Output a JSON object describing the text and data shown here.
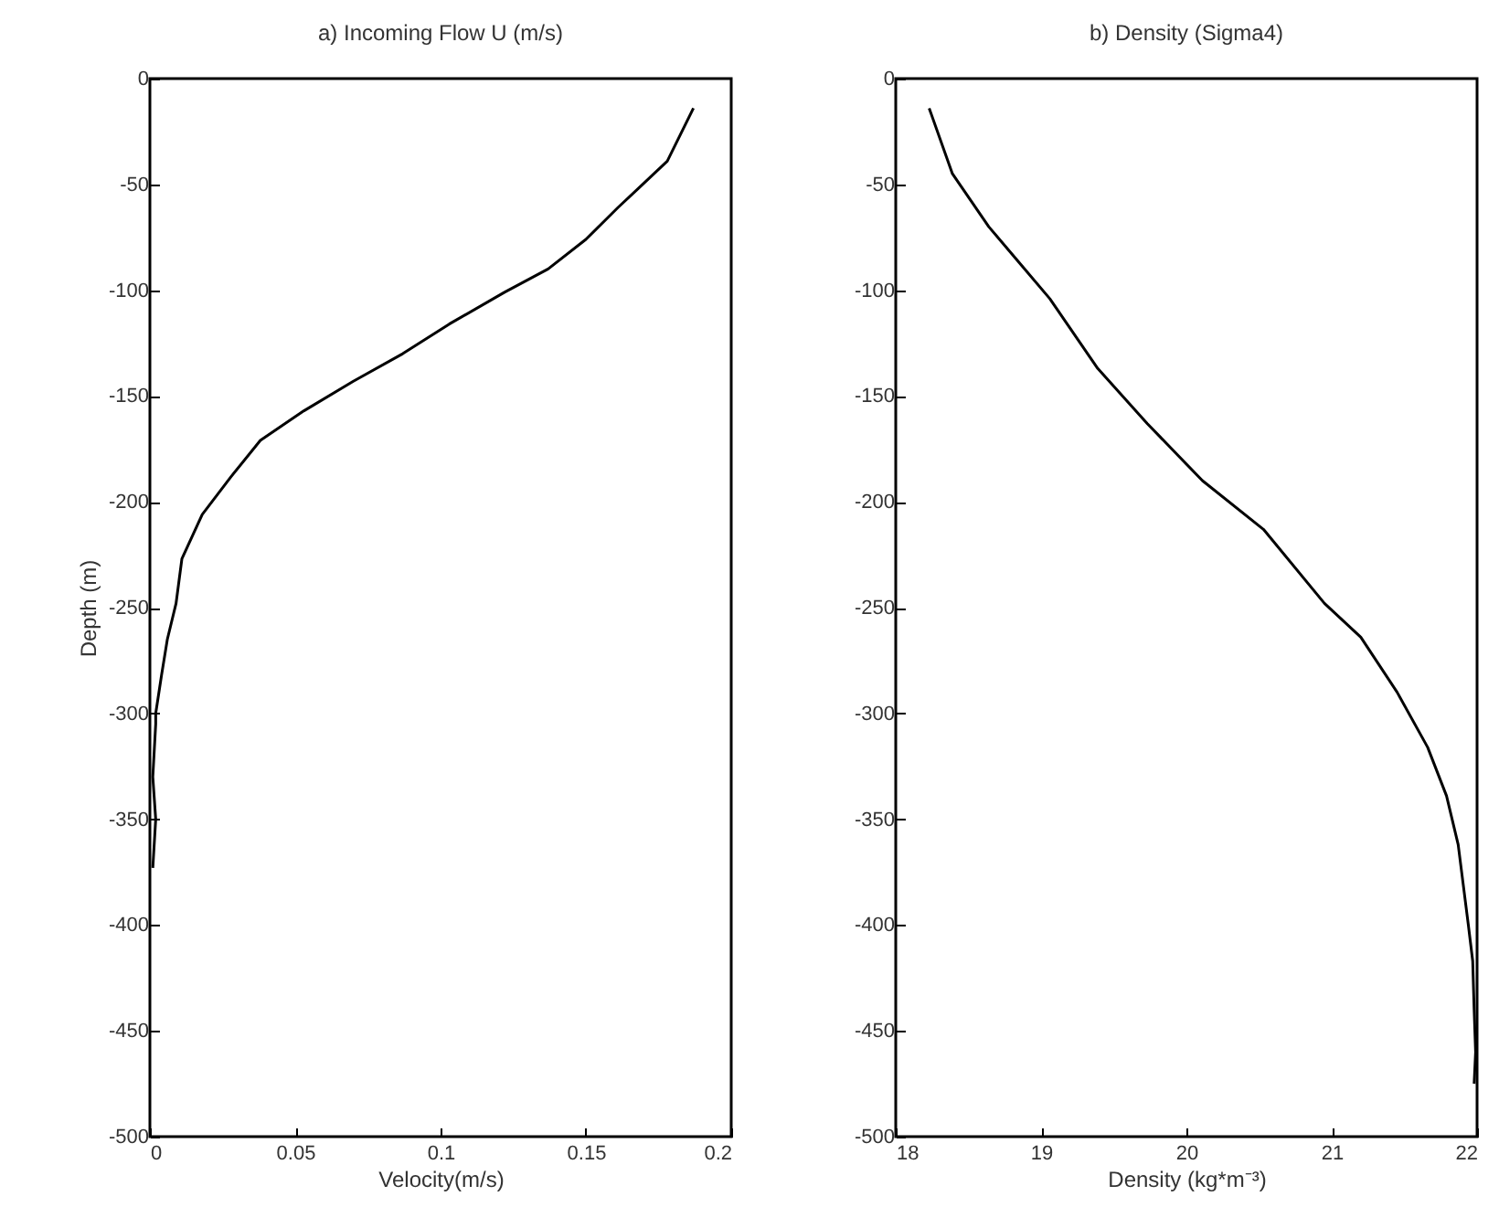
{
  "chart_data": [
    {
      "type": "line",
      "title": "a) Incoming Flow U (m/s)",
      "xlabel": "Velocity(m/s)",
      "ylabel": "Depth (m)",
      "series": [
        {
          "color": "#000000",
          "x": [
            0.187,
            0.178,
            0.168,
            0.161,
            0.15,
            0.137,
            0.122,
            0.103,
            0.087,
            0.07,
            0.053,
            0.038,
            0.028,
            0.018,
            0.011,
            0.009,
            0.006,
            0.004,
            0.002,
            0.002,
            0.001,
            0.002,
            0.001
          ],
          "values": [
            -14,
            -39,
            -52,
            -61,
            -76,
            -90,
            -101,
            -116,
            -130,
            -143,
            -157,
            -171,
            -188,
            -206,
            -227,
            -248,
            -265,
            -282,
            -300,
            -305,
            -330,
            -350,
            -373
          ]
        }
      ],
      "xlim": [
        0,
        0.2
      ],
      "xticks": [
        0,
        0.05,
        0.1,
        0.15,
        0.2
      ],
      "ylim": [
        -500,
        0
      ],
      "yticks": [
        -500,
        -450,
        -400,
        -350,
        -300,
        -250,
        -200,
        -150,
        -100,
        -50,
        0
      ],
      "grid": false
    },
    {
      "type": "line",
      "title": "b) Density (Sigma4)",
      "xlabel": "Density (kg*m⁻³)",
      "series": [
        {
          "color": "#000000",
          "x": [
            18.23,
            18.39,
            18.64,
            18.85,
            19.06,
            19.39,
            19.73,
            20.11,
            20.53,
            20.95,
            21.2,
            21.45,
            21.66,
            21.79,
            21.87,
            21.94,
            21.97,
            21.98,
            21.99,
            21.98
          ],
          "values": [
            -14,
            -45,
            -70,
            -87,
            -104,
            -137,
            -163,
            -190,
            -213,
            -248,
            -264,
            -290,
            -316,
            -339,
            -362,
            -400,
            -417,
            -440,
            -460,
            -475
          ]
        }
      ],
      "xlim": [
        18,
        22
      ],
      "xticks": [
        18,
        19,
        20,
        21,
        22
      ],
      "ylim": [
        -500,
        0
      ],
      "yticks": [
        -500,
        -450,
        -400,
        -350,
        -300,
        -250,
        -200,
        -150,
        -100,
        -50,
        0
      ],
      "grid": false
    }
  ]
}
